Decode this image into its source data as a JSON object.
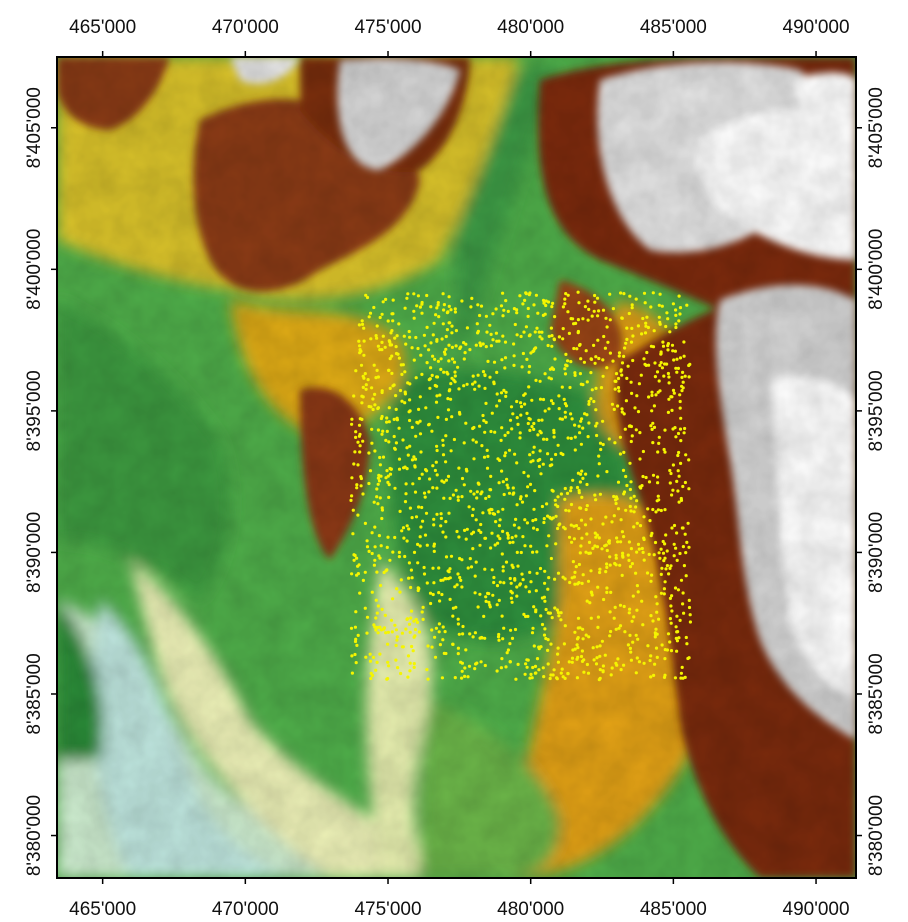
{
  "map": {
    "x_axis": {
      "ticks": [
        "465'000",
        "470'000",
        "475'000",
        "480'000",
        "485'000",
        "490'000"
      ],
      "values": [
        465000,
        470000,
        475000,
        480000,
        485000,
        490000
      ]
    },
    "y_axis": {
      "ticks": [
        "8'405'000",
        "8'400'000",
        "8'395'000",
        "8'390'000",
        "8'385'000",
        "8'380'000"
      ],
      "values": [
        8405000,
        8400000,
        8395000,
        8390000,
        8385000,
        8380000
      ]
    },
    "extent": {
      "x_range": [
        463400,
        491400
      ],
      "y_range": [
        8378500,
        8407500
      ]
    },
    "sample_area": {
      "x_range": [
        473700,
        485600
      ],
      "y_range": [
        8385500,
        8399200
      ],
      "point_color": "#f5f500",
      "point_count": 1800
    },
    "elevation_colors": [
      "#bfe8d8",
      "#f2f2b0",
      "#6ab84a",
      "#2e8a3a",
      "#e6d020",
      "#e69a10",
      "#a84a14",
      "#6a2a0e",
      "#ffffff"
    ],
    "frame_color": "#000000"
  }
}
